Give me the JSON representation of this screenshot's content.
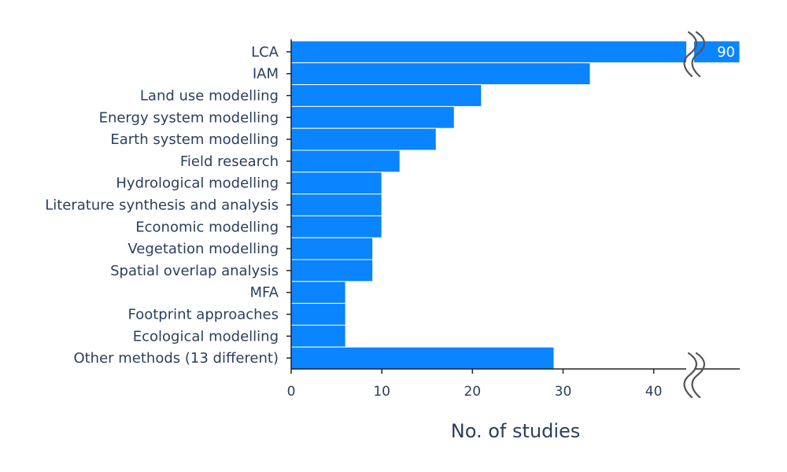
{
  "chart_data": {
    "type": "bar",
    "orientation": "horizontal",
    "categories": [
      "LCA",
      "IAM",
      "Land use modelling",
      "Energy system modelling",
      "Earth system modelling",
      "Field research",
      "Hydrological modelling",
      "Literature synthesis and analysis",
      "Economic modelling",
      "Vegetation modelling",
      "Spatial overlap analysis",
      "MFA",
      "Footprint approaches",
      "Ecological modelling",
      "Other methods (13 different)"
    ],
    "values": [
      90,
      33,
      21,
      18,
      16,
      12,
      10,
      10,
      10,
      9,
      9,
      6,
      6,
      6,
      29
    ],
    "xlabel": "No. of studies",
    "ylabel": "",
    "xlim": [
      0,
      49.5
    ],
    "xticks": [
      "0",
      "10",
      "20",
      "30",
      "40"
    ],
    "data_labels": [
      {
        "category": "LCA",
        "text": "90"
      }
    ],
    "axis_break": true,
    "grid": false,
    "colors": {
      "bar": "#0a84ff",
      "text": "#2a3f5f"
    }
  }
}
